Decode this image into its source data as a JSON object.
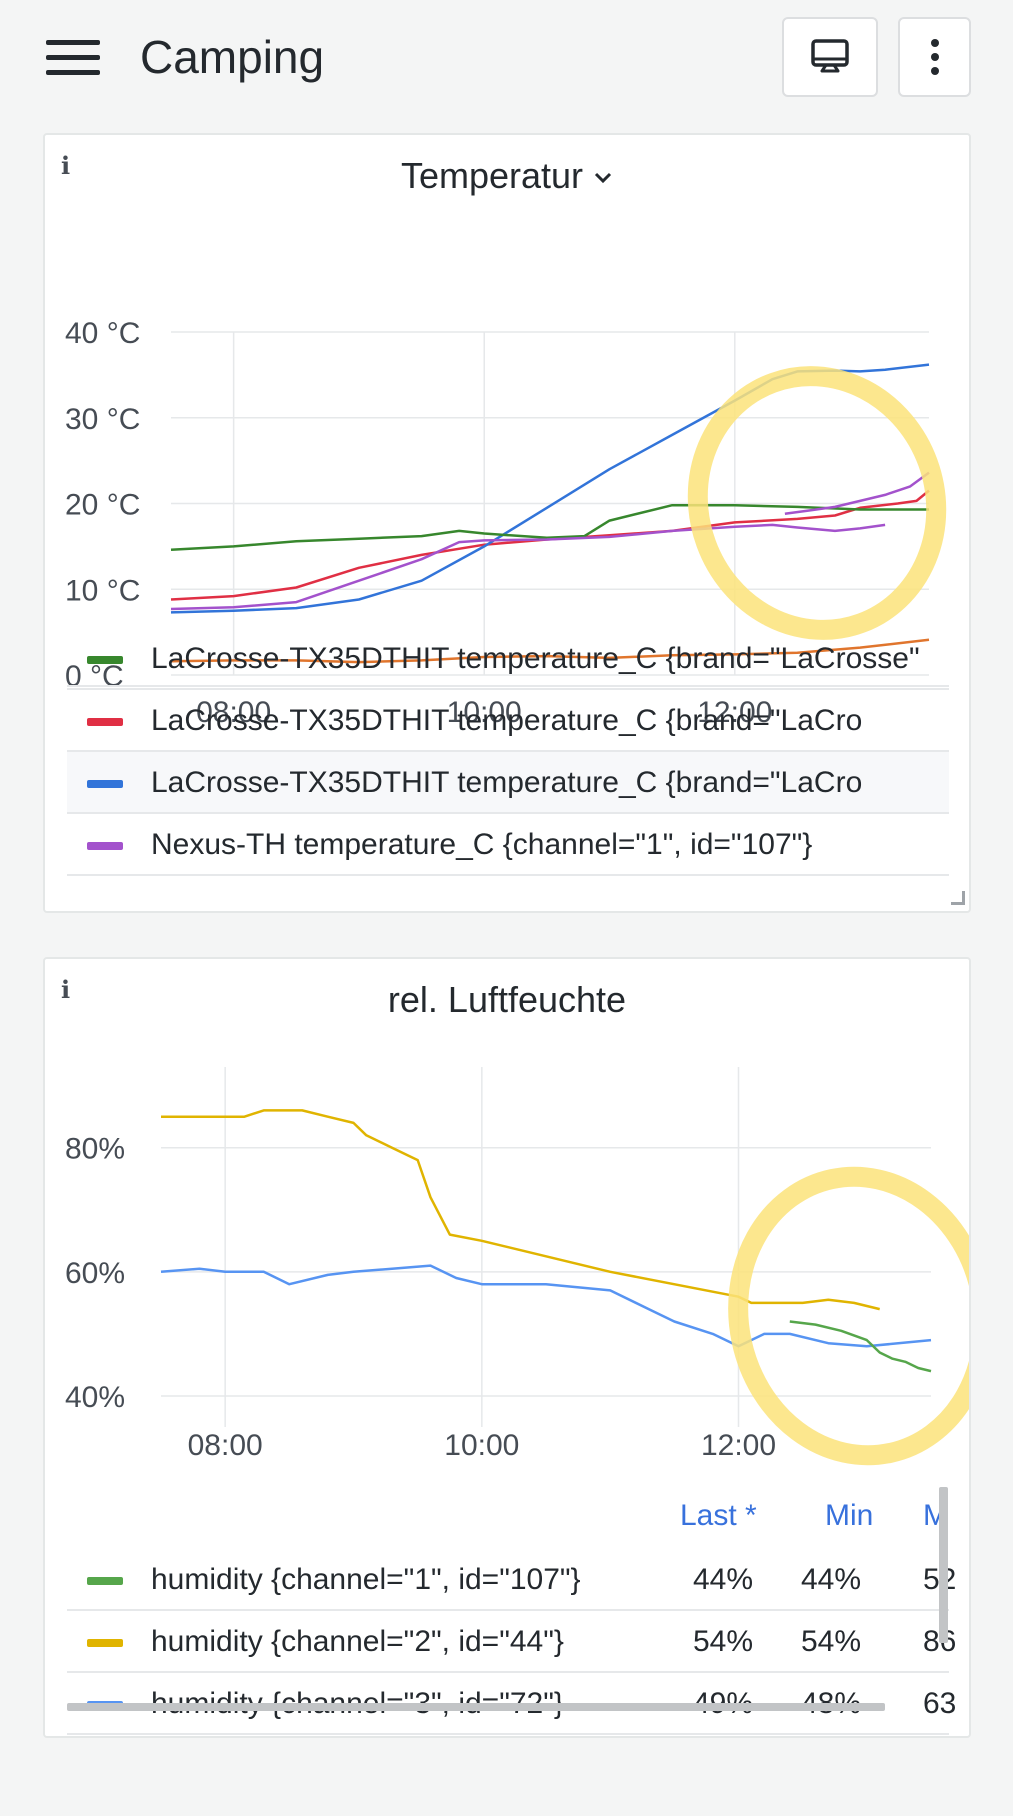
{
  "header": {
    "title": "Camping",
    "tv_icon": "tv-mode-icon",
    "menu_icon": "kebab-menu-icon"
  },
  "panels": [
    {
      "title": "Temperatur",
      "chart_data": {
        "type": "line",
        "title": "Temperatur",
        "y_unit": " °C",
        "ylim": [
          0,
          40
        ],
        "yticks": [
          "0 °C",
          "10 °C",
          "20 °C",
          "30 °C",
          "40 °C"
        ],
        "xlim": [
          7.5,
          13.55
        ],
        "xticks": [
          "08:00",
          "10:00",
          "12:00"
        ],
        "grid": true,
        "series": [
          {
            "color": "#e02f44",
            "x": [
              7.5,
              8,
              8.5,
              9,
              9.5,
              10,
              10.5,
              11,
              11.5,
              12,
              12.5,
              12.8,
              13,
              13.3,
              13.45,
              13.55
            ],
            "y": [
              8.8,
              9.2,
              10.2,
              12.5,
              14,
              15.2,
              15.8,
              16.3,
              16.8,
              17.8,
              18.2,
              18.6,
              19.5,
              20,
              20.3,
              21.5
            ]
          },
          {
            "color": "#3274d9",
            "x": [
              7.5,
              8,
              8.5,
              9,
              9.5,
              10,
              10.5,
              11,
              11.5,
              12,
              12.3,
              12.5,
              12.8,
              13,
              13.2,
              13.55
            ],
            "y": [
              7.3,
              7.5,
              7.8,
              8.8,
              11,
              15,
              19.5,
              24,
              28,
              32,
              34.5,
              35.4,
              35.5,
              35.4,
              35.6,
              36.2
            ]
          },
          {
            "color": "#37872d",
            "x": [
              7.5,
              8,
              8.5,
              9,
              9.5,
              9.8,
              10,
              10.5,
              10.8,
              11,
              11.5,
              12,
              12.5,
              13,
              13.55
            ],
            "y": [
              14.6,
              15,
              15.6,
              15.9,
              16.2,
              16.8,
              16.5,
              16,
              16.2,
              18,
              19.8,
              19.8,
              19.6,
              19.3,
              19.3
            ]
          },
          {
            "color": "#a352cc",
            "x": [
              7.5,
              8,
              8.5,
              9,
              9.5,
              9.8,
              10,
              10.5,
              11,
              11.5,
              12,
              12.3,
              12.5,
              12.8,
              13,
              13.2
            ],
            "y": [
              7.7,
              7.9,
              8.5,
              11,
              13.5,
              15.5,
              15.7,
              15.8,
              16.1,
              16.8,
              17.3,
              17.5,
              17.2,
              16.8,
              17.1,
              17.5
            ]
          },
          {
            "color": "#a352cc",
            "x": [
              12.4,
              12.6,
              12.8,
              13,
              13.2,
              13.4,
              13.55
            ],
            "y": [
              18.8,
              19.2,
              19.6,
              20.3,
              21,
              22,
              23.6
            ]
          },
          {
            "color": "#e0752d",
            "x": [
              7.5,
              8,
              8.5,
              9,
              9.5,
              10,
              10.5,
              11,
              11.5,
              12,
              12.5,
              13,
              13.55
            ],
            "y": [
              1.6,
              1.7,
              1.7,
              1.5,
              1.7,
              2.1,
              2.2,
              2,
              2.3,
              2.4,
              2.6,
              3.2,
              4.1
            ]
          }
        ]
      },
      "legend": [
        {
          "color": "#37872d",
          "label": "LaCrosse-TX35DTHIT temperature_C {brand=\"LaCrosse\""
        },
        {
          "color": "#e02f44",
          "label": "LaCrosse-TX35DTHIT temperature_C {brand=\"LaCro"
        },
        {
          "color": "#3274d9",
          "label": "LaCrosse-TX35DTHIT temperature_C {brand=\"LaCro"
        },
        {
          "color": "#a352cc",
          "label": "Nexus-TH temperature_C {channel=\"1\", id=\"107\"}"
        }
      ]
    },
    {
      "title": "rel. Luftfeuchte",
      "chart_data": {
        "type": "line",
        "title": "rel. Luftfeuchte",
        "ylim": [
          35,
          93
        ],
        "yticks": [
          "40%",
          "60%",
          "80%"
        ],
        "ytick_values": [
          40,
          60,
          80
        ],
        "xlim": [
          7.5,
          13.5
        ],
        "xticks": [
          "08:00",
          "10:00",
          "12:00"
        ],
        "grid": true,
        "series": [
          {
            "color": "#e0b400",
            "x": [
              7.5,
              8,
              8.15,
              8.3,
              8.4,
              8.6,
              8.8,
              9,
              9.1,
              9.3,
              9.5,
              9.6,
              9.75,
              10,
              11,
              12,
              12.1,
              12.3,
              12.5,
              12.7,
              12.9,
              13.1
            ],
            "y": [
              85,
              85,
              85,
              86,
              86,
              86,
              85,
              84,
              82,
              80,
              78,
              72,
              66,
              65,
              60,
              56,
              55,
              55,
              55,
              55.5,
              55,
              54
            ]
          },
          {
            "color": "#5794f2",
            "x": [
              7.5,
              7.8,
              8,
              8.3,
              8.5,
              8.8,
              9,
              9.3,
              9.6,
              9.8,
              10,
              10.5,
              11,
              11.3,
              11.5,
              11.8,
              12,
              12.2,
              12.4,
              12.7,
              13,
              13.5
            ],
            "y": [
              60,
              60.5,
              60,
              60,
              58,
              59.5,
              60,
              60.5,
              61,
              59,
              58,
              58,
              57,
              54,
              52,
              50,
              48,
              50,
              50,
              48.5,
              48,
              49
            ]
          },
          {
            "color": "#56a64b",
            "x": [
              12.4,
              12.6,
              12.8,
              13,
              13.1,
              13.2,
              13.3,
              13.4,
              13.5
            ],
            "y": [
              52,
              51.5,
              50.5,
              49,
              47,
              46,
              45.5,
              44.5,
              44
            ]
          }
        ]
      },
      "legend_headers": [
        "Last *",
        "Min",
        "M"
      ],
      "legend": [
        {
          "color": "#56a64b",
          "label": "humidity {channel=\"1\", id=\"107\"}",
          "last": "44%",
          "min": "44%",
          "max": "52"
        },
        {
          "color": "#e0b400",
          "label": "humidity {channel=\"2\", id=\"44\"}",
          "last": "54%",
          "min": "54%",
          "max": "86"
        },
        {
          "color": "#5794f2",
          "label": "humidity {channel=\"3\", id=\"72\"}",
          "last": "49%",
          "min": "48%",
          "max": "63"
        }
      ]
    }
  ],
  "annotation_color": "#fce37a"
}
